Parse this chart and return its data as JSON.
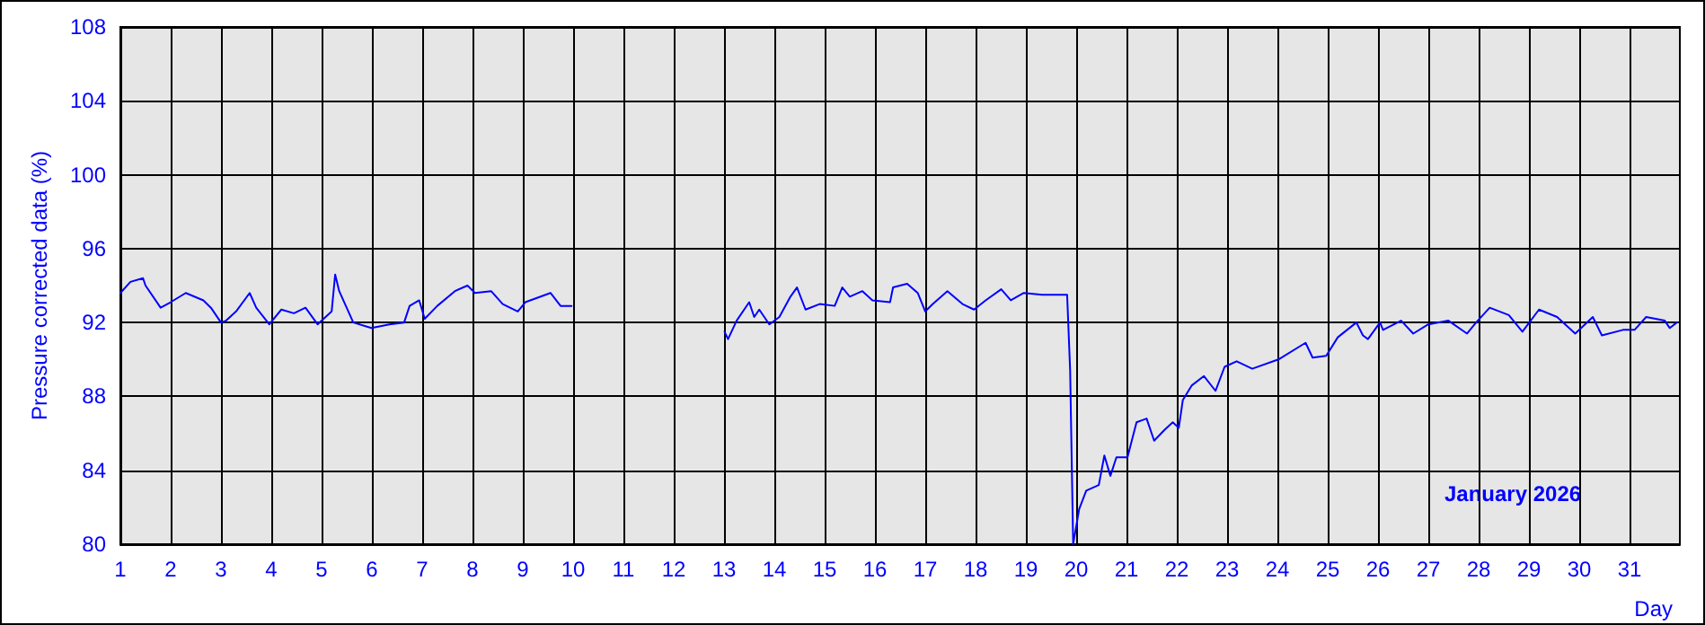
{
  "chart_data": {
    "type": "line",
    "xlabel": "Day",
    "ylabel": "Pressure corrected data (%)",
    "annotations": [
      "January 2026"
    ],
    "xlim": [
      1,
      32
    ],
    "xticks": [
      1,
      2,
      3,
      4,
      5,
      6,
      7,
      8,
      9,
      10,
      11,
      12,
      13,
      14,
      15,
      16,
      17,
      18,
      19,
      20,
      21,
      22,
      23,
      24,
      25,
      26,
      27,
      28,
      29,
      30,
      31
    ],
    "ylim": [
      80,
      108
    ],
    "yticks": [
      80,
      84,
      88,
      92,
      96,
      100,
      104,
      108
    ],
    "grid": true,
    "marker": "none",
    "line_style": "solid",
    "series": [
      {
        "color": "#0000ff",
        "x": [
          1.0,
          1.2,
          1.45,
          1.5,
          1.8,
          2.0,
          2.3,
          2.65,
          2.8,
          3.0,
          3.1,
          3.3,
          3.57,
          3.7,
          3.96,
          4.2,
          4.45,
          4.68,
          4.92,
          5.2,
          5.27,
          5.35,
          5.63,
          5.99,
          6.35,
          6.64,
          6.75,
          6.94,
          7.05,
          7.3,
          7.65,
          7.9,
          8.05,
          8.37,
          8.6,
          8.9,
          9.05,
          9.55,
          9.75,
          9.97,
          11.5,
          13.01,
          13.08,
          13.25,
          13.5,
          13.6,
          13.7,
          13.9,
          14.1,
          14.32,
          14.45,
          14.62,
          14.9,
          15.2,
          15.35,
          15.5,
          15.75,
          15.95,
          16.3,
          16.36,
          16.64,
          16.85,
          17.0,
          17.15,
          17.44,
          17.74,
          17.97,
          18.2,
          18.51,
          18.7,
          18.96,
          19.32,
          19.6,
          19.82,
          19.88,
          19.94,
          20.06,
          20.2,
          20.45,
          20.56,
          20.68,
          20.8,
          21.02,
          21.2,
          21.4,
          21.55,
          21.76,
          21.92,
          22.04,
          22.12,
          22.3,
          22.54,
          22.77,
          22.95,
          23.19,
          23.5,
          24.02,
          24.56,
          24.7,
          24.97,
          25.2,
          25.57,
          25.7,
          25.8,
          26.04,
          26.1,
          26.46,
          26.7,
          27.0,
          27.4,
          27.77,
          27.95,
          28.22,
          28.6,
          28.87,
          29.2,
          29.56,
          29.92,
          30.27,
          30.45,
          30.87,
          31.1,
          31.33,
          31.7,
          31.8,
          31.94
        ],
        "values": [
          93.6,
          94.2,
          94.4,
          94.0,
          92.8,
          93.1,
          93.6,
          93.2,
          92.8,
          92.0,
          92.1,
          92.6,
          93.6,
          92.8,
          91.9,
          92.7,
          92.5,
          92.8,
          91.9,
          92.6,
          94.6,
          93.7,
          92.0,
          91.7,
          91.9,
          92.0,
          92.9,
          93.2,
          92.2,
          92.9,
          93.7,
          94.0,
          93.6,
          93.7,
          93.0,
          92.6,
          93.1,
          93.6,
          92.9,
          92.9,
          null,
          91.5,
          91.1,
          92.1,
          93.1,
          92.3,
          92.7,
          91.9,
          92.3,
          93.4,
          93.9,
          92.7,
          93.0,
          92.9,
          93.9,
          93.4,
          93.7,
          93.2,
          93.1,
          93.9,
          94.1,
          93.6,
          92.6,
          93.0,
          93.7,
          93.0,
          92.7,
          93.2,
          93.8,
          93.2,
          93.6,
          93.5,
          93.5,
          93.5,
          89.4,
          80.0,
          81.9,
          82.9,
          83.2,
          84.8,
          83.7,
          84.7,
          84.7,
          86.6,
          86.8,
          85.6,
          86.2,
          86.6,
          86.3,
          87.8,
          88.6,
          89.1,
          88.3,
          89.6,
          89.9,
          89.5,
          90.0,
          90.9,
          90.1,
          90.2,
          91.2,
          92.0,
          91.3,
          91.1,
          92.0,
          91.6,
          92.1,
          91.4,
          91.9,
          92.1,
          91.4,
          92.0,
          92.8,
          92.4,
          91.5,
          92.7,
          92.3,
          91.4,
          92.3,
          91.3,
          91.6,
          91.6,
          92.3,
          92.1,
          91.7,
          92.0
        ]
      }
    ]
  }
}
